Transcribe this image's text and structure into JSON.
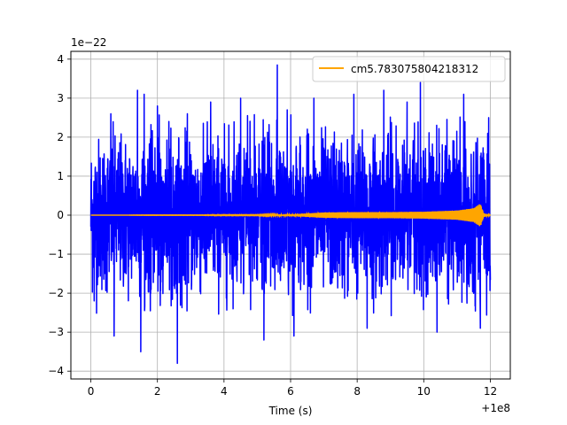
{
  "chart_data": {
    "type": "line",
    "xlabel": "Time (s)",
    "ylabel": "",
    "x_offset_text": "+1e8",
    "y_scale_text": "1e−22",
    "xlim": [
      -0.6,
      12.6
    ],
    "ylim": [
      -4.2,
      4.2
    ],
    "x_ticks": [
      0,
      2,
      4,
      6,
      8,
      10,
      12
    ],
    "x_tick_labels": [
      "0",
      "2",
      "4",
      "6",
      "8",
      "10",
      "12"
    ],
    "y_ticks": [
      -4,
      -3,
      -2,
      -1,
      0,
      1,
      2,
      3,
      4
    ],
    "y_tick_labels": [
      "−4",
      "−3",
      "−2",
      "−1",
      "0",
      "1",
      "2",
      "3",
      "4"
    ],
    "grid": true,
    "legend_position": "top-right",
    "legend_entries": [
      "cm5.783075804218312"
    ],
    "series": [
      {
        "name": "",
        "color": "#0000ff",
        "style": "noise",
        "x_range": [
          0,
          12
        ],
        "typical_envelope": [
          -2.3,
          2.3
        ],
        "spikes": [
          {
            "x": 0.1,
            "y": -2.2
          },
          {
            "x": 0.6,
            "y": 2.6
          },
          {
            "x": 0.7,
            "y": -3.1
          },
          {
            "x": 1.4,
            "y": 3.2
          },
          {
            "x": 1.5,
            "y": -3.5
          },
          {
            "x": 1.6,
            "y": 3.1
          },
          {
            "x": 2.0,
            "y": 2.8
          },
          {
            "x": 2.6,
            "y": -3.8
          },
          {
            "x": 2.9,
            "y": 2.6
          },
          {
            "x": 3.6,
            "y": 2.9
          },
          {
            "x": 4.5,
            "y": 3.0
          },
          {
            "x": 5.2,
            "y": -3.2
          },
          {
            "x": 5.6,
            "y": 3.85
          },
          {
            "x": 5.9,
            "y": 2.7
          },
          {
            "x": 6.1,
            "y": -3.1
          },
          {
            "x": 6.7,
            "y": 3.0
          },
          {
            "x": 7.9,
            "y": 3.1
          },
          {
            "x": 8.3,
            "y": -2.9
          },
          {
            "x": 8.8,
            "y": 3.2
          },
          {
            "x": 9.5,
            "y": 2.9
          },
          {
            "x": 9.9,
            "y": 3.4
          },
          {
            "x": 10.4,
            "y": -3.0
          },
          {
            "x": 11.2,
            "y": 3.1
          },
          {
            "x": 11.7,
            "y": -2.9
          },
          {
            "x": 11.95,
            "y": 2.5
          }
        ]
      },
      {
        "name": "cm5.783075804218312",
        "color": "#ffa500",
        "style": "chirp",
        "x_range": [
          0,
          12
        ],
        "amplitude_points": [
          {
            "x": 0,
            "y": 0.0
          },
          {
            "x": 5.0,
            "y": 0.005
          },
          {
            "x": 6.0,
            "y": 0.02
          },
          {
            "x": 7.0,
            "y": 0.07
          },
          {
            "x": 8.0,
            "y": 0.08
          },
          {
            "x": 9.0,
            "y": 0.08
          },
          {
            "x": 10.0,
            "y": 0.09
          },
          {
            "x": 11.0,
            "y": 0.12
          },
          {
            "x": 11.5,
            "y": 0.18
          },
          {
            "x": 11.7,
            "y": 0.3
          },
          {
            "x": 11.8,
            "y": 0.05
          },
          {
            "x": 12.0,
            "y": 0.0
          }
        ]
      }
    ]
  }
}
